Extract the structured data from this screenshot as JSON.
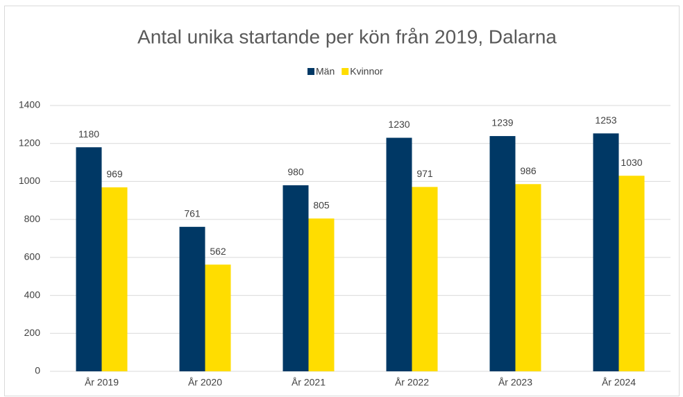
{
  "chart_data": {
    "type": "bar",
    "title": "Antal unika startande per kön från 2019, Dalarna",
    "categories": [
      "År 2019",
      "År 2020",
      "År 2021",
      "År 2022",
      "År 2023",
      "År 2024"
    ],
    "series": [
      {
        "name": "Män",
        "color": "#003865",
        "values": [
          1180,
          761,
          980,
          1230,
          1239,
          1253
        ]
      },
      {
        "name": "Kvinnor",
        "color": "#ffdd00",
        "values": [
          969,
          562,
          805,
          971,
          986,
          1030
        ]
      }
    ],
    "ylim": [
      0,
      1400
    ],
    "yticks": [
      0,
      200,
      400,
      600,
      800,
      1000,
      1200,
      1400
    ],
    "grid": true,
    "legend": "top"
  }
}
